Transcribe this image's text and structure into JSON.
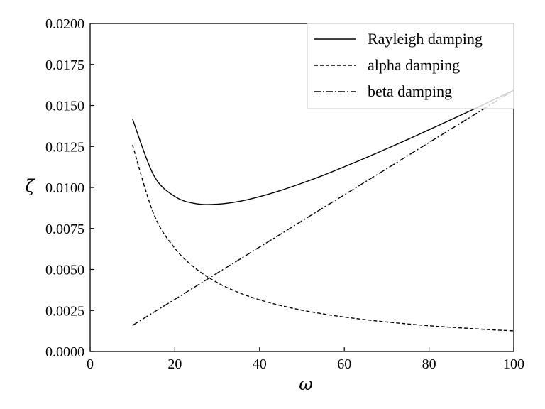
{
  "chart_data": {
    "type": "line",
    "xlabel": "ω",
    "ylabel": "ζ",
    "xlim": [
      0,
      100
    ],
    "ylim": [
      0,
      0.02
    ],
    "xticks": [
      "0",
      "20",
      "40",
      "60",
      "80",
      "100"
    ],
    "yticks": [
      "0.0000",
      "0.0025",
      "0.0050",
      "0.0075",
      "0.0100",
      "0.0125",
      "0.0150",
      "0.0175",
      "0.0200"
    ],
    "grid": false,
    "legend_position": "top-right",
    "x": [
      10,
      15,
      20,
      25,
      30,
      35,
      40,
      45,
      50,
      55,
      60,
      65,
      70,
      75,
      80,
      85,
      90,
      95,
      100
    ],
    "series": [
      {
        "name": "Rayleigh damping",
        "line_style": "solid",
        "color": "#000000",
        "values": [
          0.01418,
          0.01075,
          0.00945,
          0.00901,
          0.00898,
          0.00914,
          0.00944,
          0.00982,
          0.01026,
          0.01074,
          0.01126,
          0.0118,
          0.01236,
          0.01293,
          0.01352,
          0.01411,
          0.01471,
          0.01532,
          0.01593
        ]
      },
      {
        "name": "alpha damping",
        "line_style": "dashed",
        "color": "#000000",
        "values": [
          0.01259,
          0.00839,
          0.00629,
          0.00504,
          0.0042,
          0.0036,
          0.00315,
          0.0028,
          0.00252,
          0.00229,
          0.0021,
          0.00194,
          0.0018,
          0.00168,
          0.00157,
          0.00148,
          0.0014,
          0.00132,
          0.00126
        ]
      },
      {
        "name": "beta damping",
        "line_style": "dashdot",
        "color": "#000000",
        "values": [
          0.00159,
          0.00239,
          0.00318,
          0.00398,
          0.00478,
          0.00557,
          0.00637,
          0.00716,
          0.00796,
          0.00876,
          0.00955,
          0.01035,
          0.01114,
          0.01194,
          0.01274,
          0.01353,
          0.01433,
          0.01513,
          0.01592
        ]
      }
    ]
  }
}
